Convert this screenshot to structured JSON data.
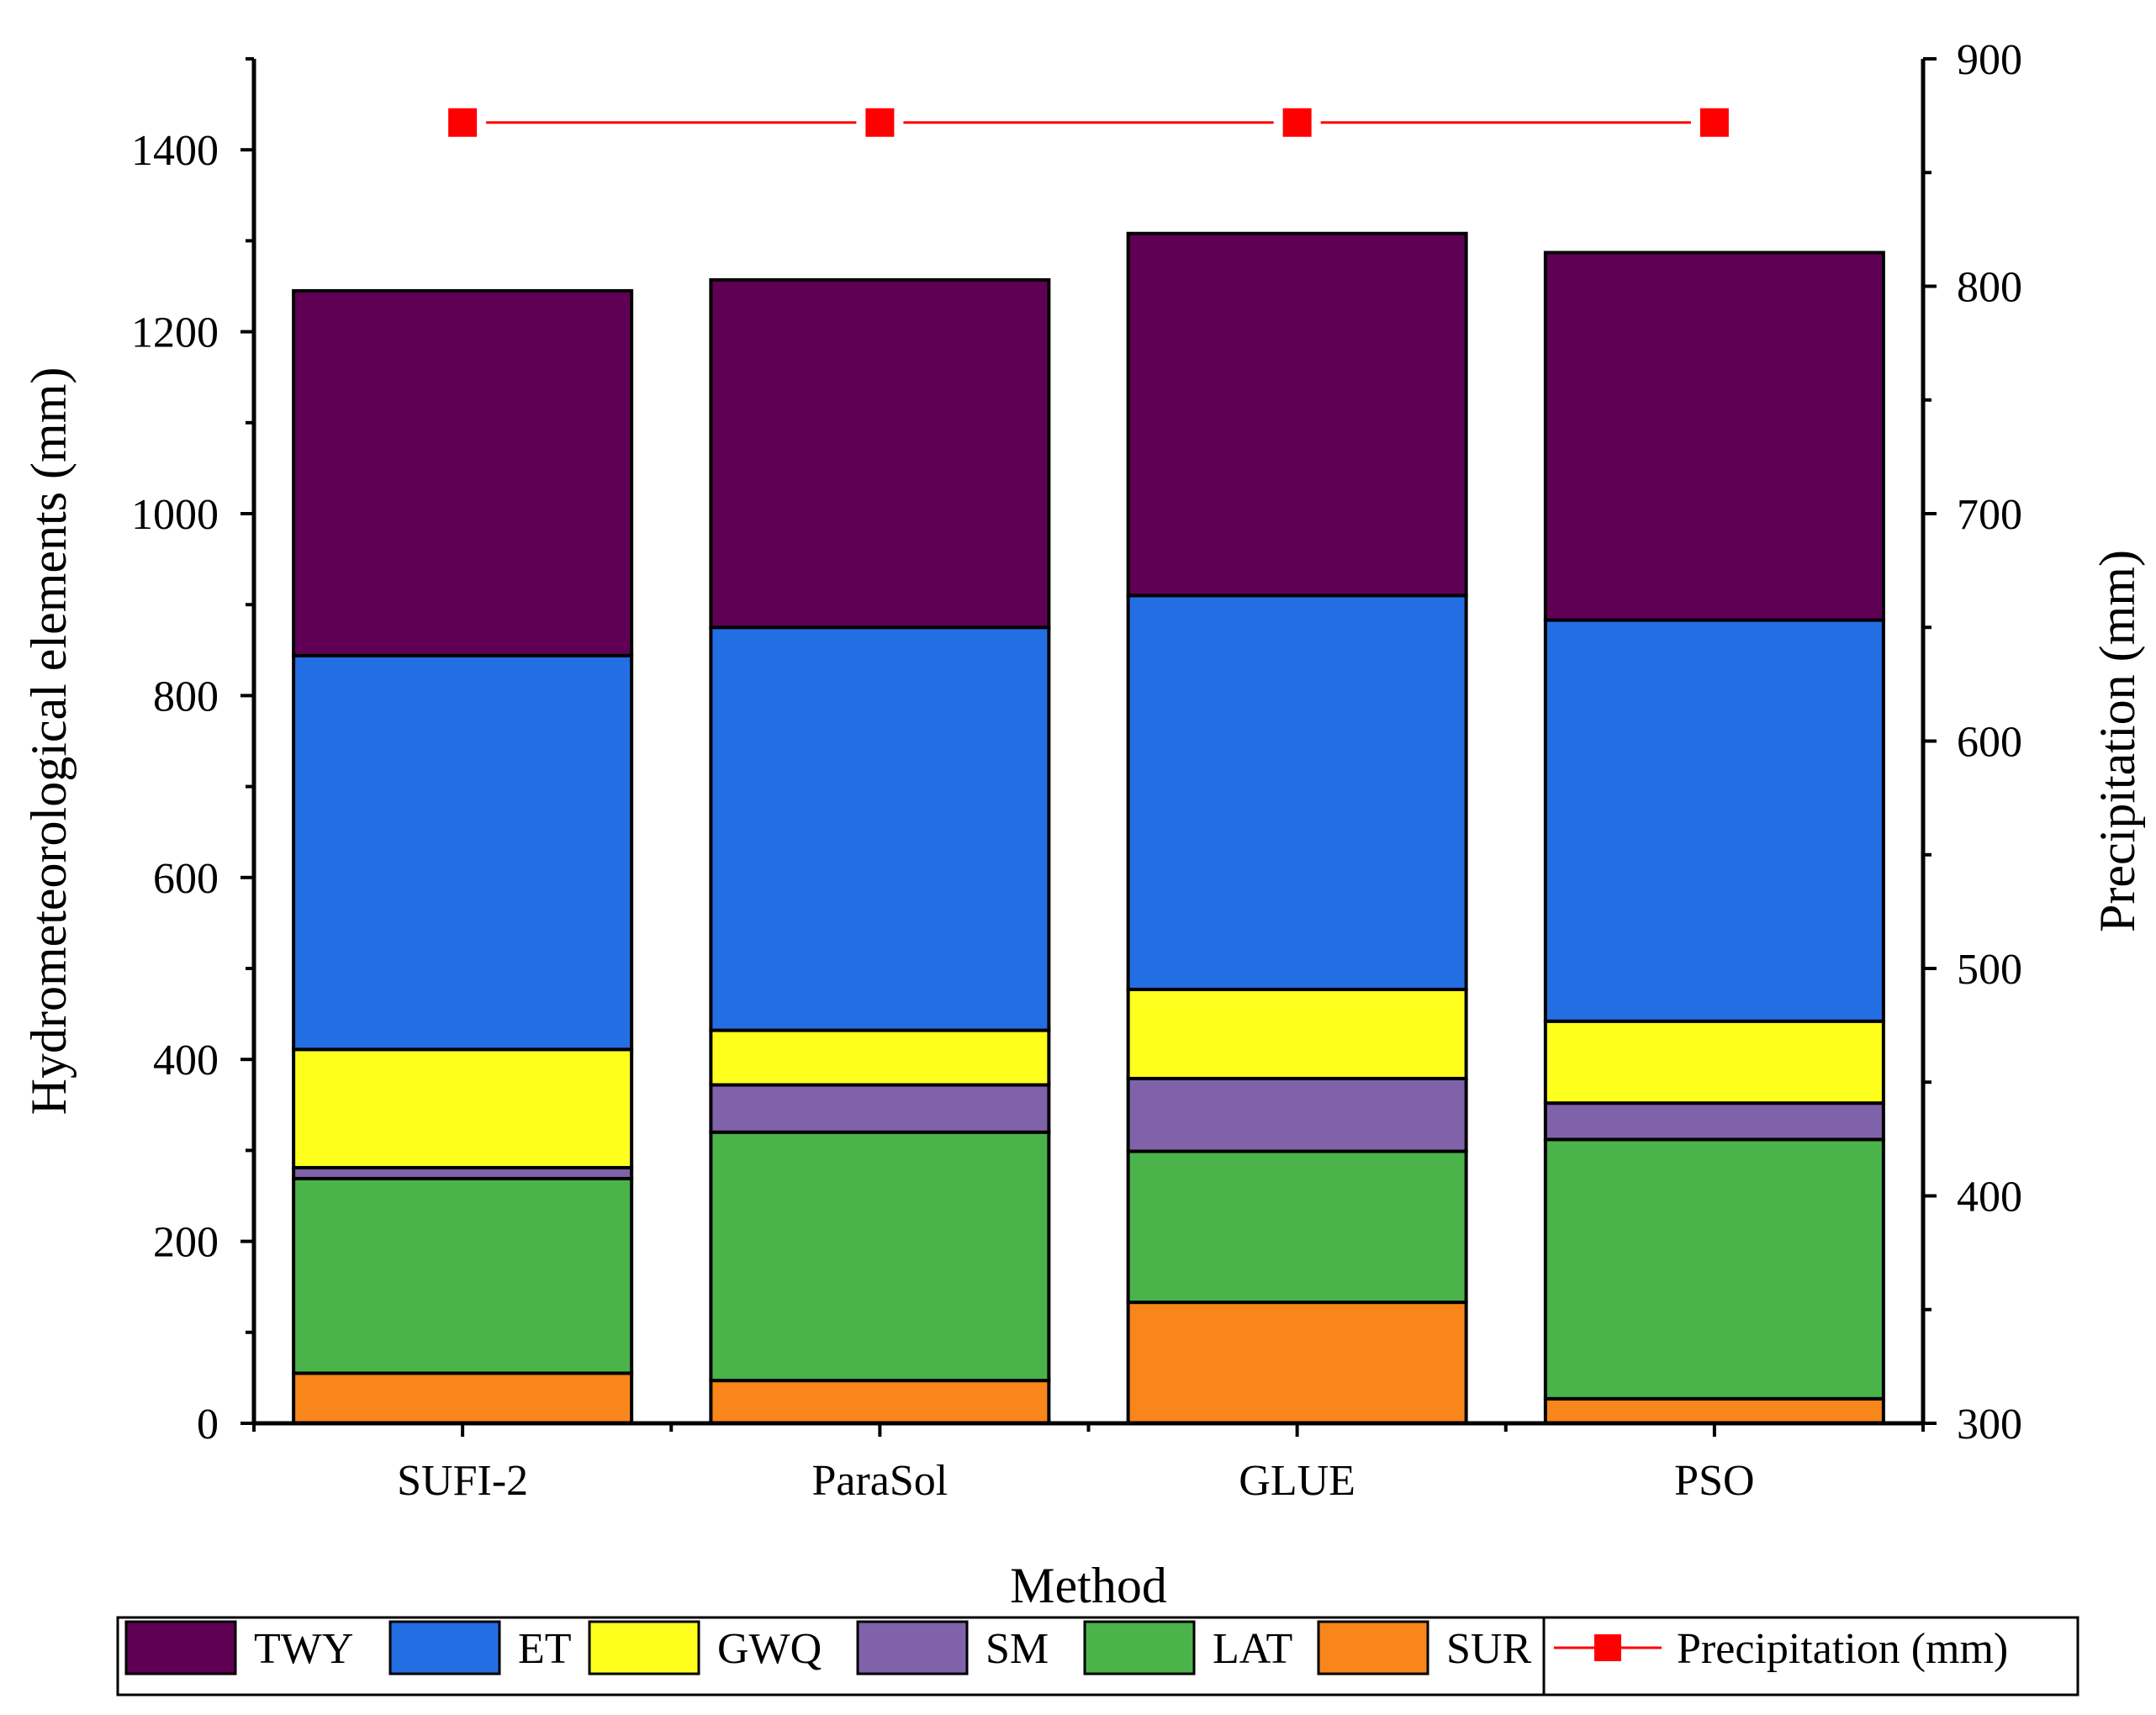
{
  "chart_data": {
    "type": "bar",
    "stacked": true,
    "xlabel": "Method",
    "ylabel": "Hydrometeorological elements (mm)",
    "y2label": "Precipitation (mm)",
    "categories": [
      "SUFI-2",
      "ParaSol",
      "GLUE",
      "PSO"
    ],
    "ylim": [
      0,
      1500
    ],
    "y2lim": [
      300,
      900
    ],
    "yticks": [
      0,
      200,
      400,
      600,
      800,
      1000,
      1200,
      1400
    ],
    "y2ticks": [
      300,
      400,
      500,
      600,
      700,
      800,
      900
    ],
    "series": [
      {
        "name": "SUR",
        "color": "#F8861A",
        "values": [
          55,
          47,
          133,
          27
        ]
      },
      {
        "name": "LAT",
        "color": "#4AB34A",
        "values": [
          214,
          273,
          166,
          285
        ]
      },
      {
        "name": "SM",
        "color": "#8062AA",
        "values": [
          12,
          52,
          80,
          40
        ]
      },
      {
        "name": "GWQ",
        "color": "#FFFF1E",
        "values": [
          130,
          60,
          98,
          90
        ]
      },
      {
        "name": "ET",
        "color": "#246EE4",
        "values": [
          433,
          443,
          433,
          441
        ]
      },
      {
        "name": "TWY",
        "color": "#600055",
        "values": [
          401,
          382,
          398,
          404
        ]
      }
    ],
    "line_series": {
      "name": "Precipitation (mm)",
      "axis": "right",
      "color": "#FF0000",
      "marker": "square",
      "values": [
        872,
        872,
        872,
        872
      ]
    }
  },
  "legend": {
    "items": [
      {
        "label": "TWY",
        "color": "#600055"
      },
      {
        "label": "ET",
        "color": "#246EE4"
      },
      {
        "label": "GWQ",
        "color": "#FFFF1E"
      },
      {
        "label": "SM",
        "color": "#8062AA"
      },
      {
        "label": "LAT",
        "color": "#4AB34A"
      },
      {
        "label": "SUR",
        "color": "#F8861A"
      }
    ],
    "line_label": "Precipitation (mm)"
  }
}
